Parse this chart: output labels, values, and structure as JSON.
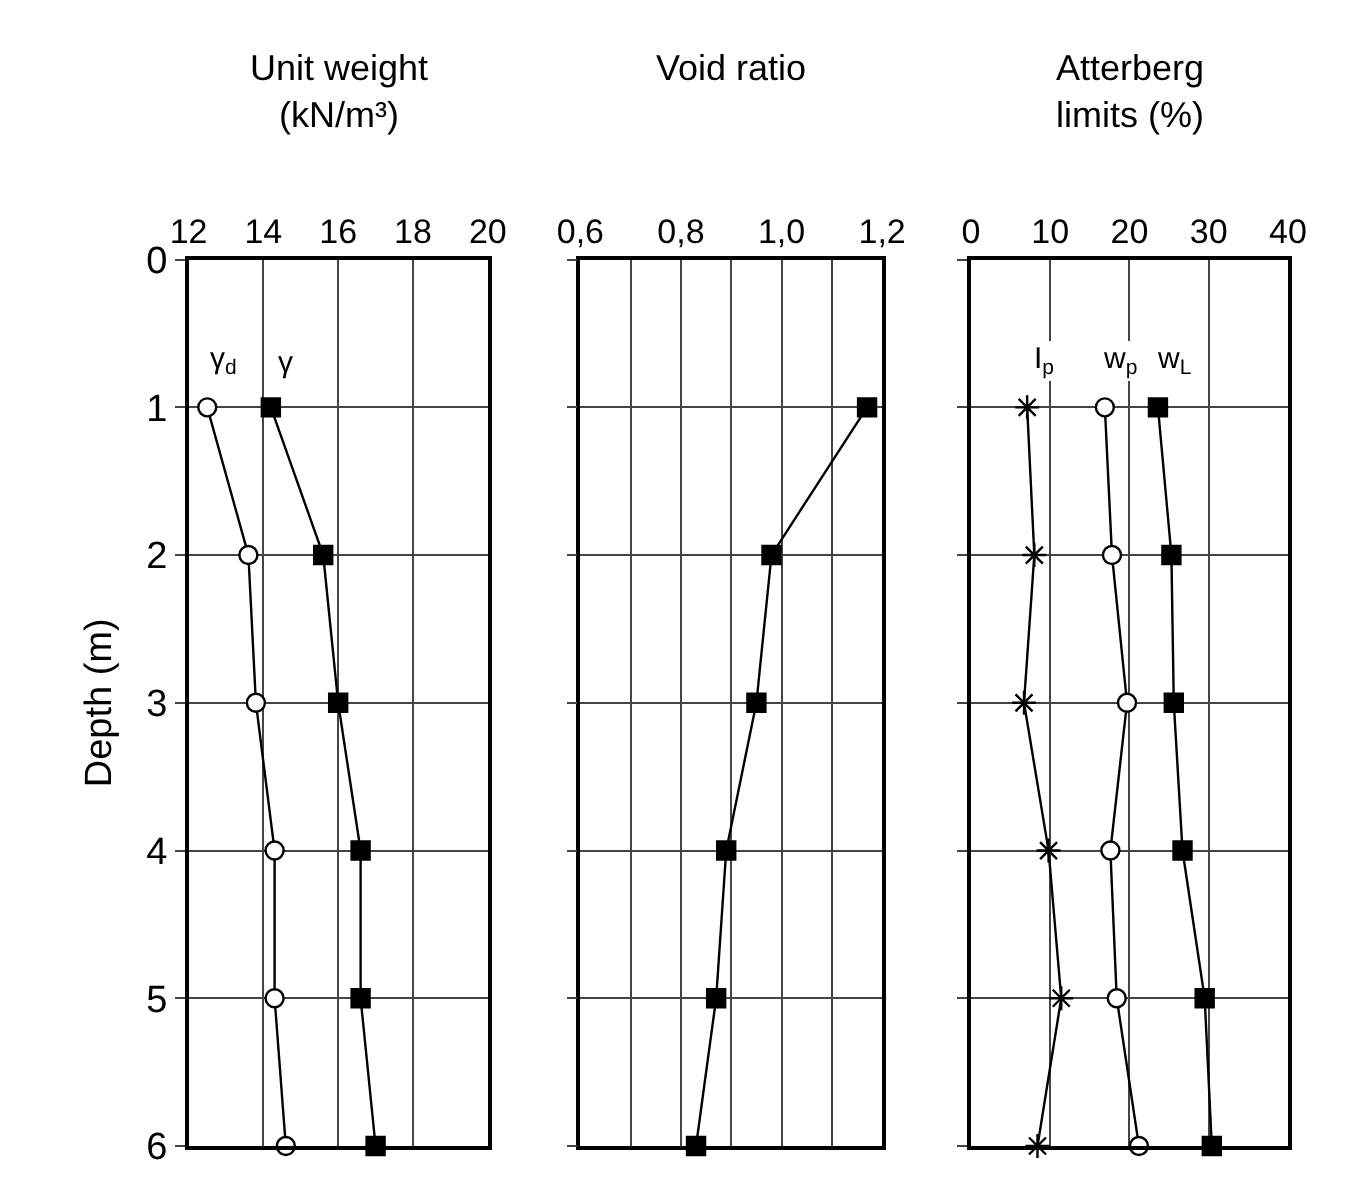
{
  "chart_data": [
    {
      "type": "line",
      "title": "Unit weight\n(kN/m³)",
      "ylabel": "Depth (m)",
      "xlim": [
        12,
        20
      ],
      "xticks": [
        12,
        14,
        16,
        18,
        20
      ],
      "ylim": [
        6,
        0
      ],
      "yticks": [
        0,
        1,
        2,
        3,
        4,
        5,
        6
      ],
      "grid": true,
      "legend": false,
      "series": [
        {
          "name": "γ$_{d}$",
          "color": "#000000",
          "marker": "circle",
          "x": [
            12.5,
            13.6,
            13.8,
            14.3,
            14.3,
            14.6
          ],
          "values": [
            1,
            2,
            3,
            4,
            5,
            6
          ]
        },
        {
          "name": "γ",
          "color": "#000000",
          "marker": "square",
          "x": [
            14.2,
            15.6,
            16.0,
            16.6,
            16.6,
            17.0
          ],
          "values": [
            1,
            2,
            3,
            4,
            5,
            6
          ]
        }
      ]
    },
    {
      "type": "line",
      "title": "Void ratio",
      "xlim": [
        0.6,
        1.2
      ],
      "xticks": [
        {
          "value": 0.6,
          "label": "0,6"
        },
        {
          "value": 0.7,
          "label": null
        },
        {
          "value": 0.8,
          "label": "0,8"
        },
        {
          "value": 0.9,
          "label": null
        },
        {
          "value": 1.0,
          "label": "1,0"
        },
        {
          "value": 1.1,
          "label": null
        },
        {
          "value": 1.2,
          "label": "1,2"
        }
      ],
      "ylim": [
        6,
        0
      ],
      "yticks": [
        0,
        1,
        2,
        3,
        4,
        5,
        6
      ],
      "grid": true,
      "legend": false,
      "tick_labels": "x",
      "series": [
        {
          "color": "#000000",
          "marker": "square",
          "x": [
            1.17,
            0.98,
            0.95,
            0.89,
            0.87,
            0.83
          ],
          "values": [
            1,
            2,
            3,
            4,
            5,
            6
          ]
        }
      ]
    },
    {
      "type": "line",
      "title": "Atterberg\nlimits (%)",
      "xlim": [
        0,
        40
      ],
      "xticks": [
        0,
        10,
        20,
        30,
        40
      ],
      "ylim": [
        6,
        0
      ],
      "yticks": [
        0,
        1,
        2,
        3,
        4,
        5,
        6
      ],
      "grid": true,
      "legend": false,
      "tick_labels": "x",
      "series": [
        {
          "name": "I$_{p}$",
          "color": "#000000",
          "marker": "cross",
          "x": [
            7.1,
            8.0,
            6.7,
            9.8,
            11.4,
            8.4
          ],
          "values": [
            1,
            2,
            3,
            4,
            5,
            6
          ]
        },
        {
          "name": "w$_{p}$",
          "color": "#000000",
          "marker": "circle",
          "x": [
            16.9,
            17.8,
            19.7,
            17.6,
            18.4,
            21.2
          ],
          "values": [
            1,
            2,
            3,
            4,
            5,
            6
          ]
        },
        {
          "name": "w$_{L}$",
          "color": "#000000",
          "marker": "square",
          "x": [
            23.6,
            25.3,
            25.6,
            26.7,
            29.5,
            30.4
          ],
          "values": [
            1,
            2,
            3,
            4,
            5,
            6
          ]
        }
      ]
    }
  ]
}
